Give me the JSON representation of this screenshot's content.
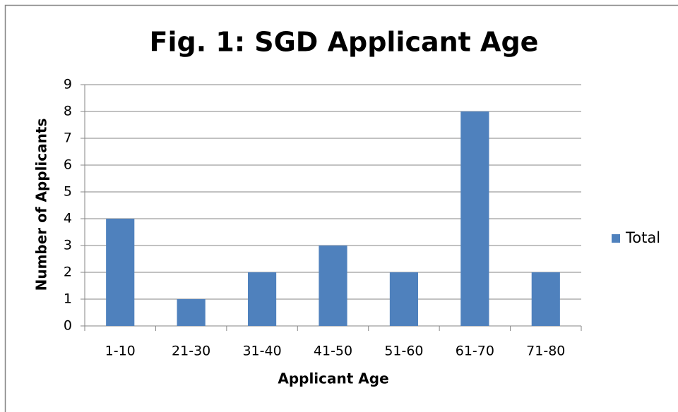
{
  "chart_data": {
    "type": "bar",
    "title": "Fig. 1: SGD Applicant Age",
    "categories": [
      "1-10",
      "21-30",
      "31-40",
      "41-50",
      "51-60",
      "61-70",
      "71-80"
    ],
    "series": [
      {
        "name": "Total",
        "color": "#4f81bd",
        "values": [
          4,
          1,
          2,
          3,
          2,
          8,
          2
        ]
      }
    ],
    "x_label": "Applicant Age",
    "y_label": "Number of Applicants",
    "ylim": [
      0,
      9
    ],
    "yticks": [
      0,
      1,
      2,
      3,
      4,
      5,
      6,
      7,
      8,
      9
    ],
    "grid": true,
    "legend": "right"
  }
}
